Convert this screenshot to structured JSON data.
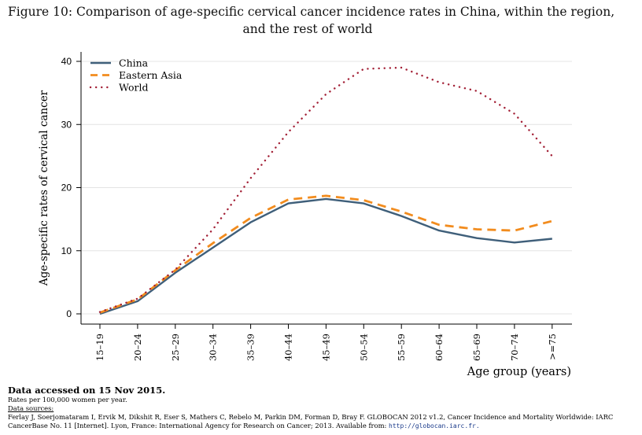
{
  "figure": {
    "title_line1": "Figure 10: Comparison of age-specific cervical cancer incidence rates in China, within the region,",
    "title_line2": "and the rest of world"
  },
  "chart_data": {
    "type": "line",
    "xlabel": "Age group (years)",
    "ylabel": "Age-specific rates of cervical cancer",
    "ylim": [
      0,
      40
    ],
    "yticks": [
      0,
      10,
      20,
      30,
      40
    ],
    "grid": true,
    "legend_position": "top-left",
    "categories": [
      "15–19",
      "20–24",
      "25–29",
      "30–34",
      "35–39",
      "40–44",
      "45–49",
      "50–54",
      "55–59",
      "60–64",
      "65–69",
      "70–74",
      ">=75"
    ],
    "series": [
      {
        "name": "China",
        "color": "#3f5f7a",
        "style": "solid",
        "values": [
          0.0,
          2.0,
          6.5,
          10.5,
          14.5,
          17.5,
          18.2,
          17.5,
          15.5,
          13.2,
          12.0,
          11.3,
          11.9
        ]
      },
      {
        "name": "Eastern Asia",
        "color": "#f28c1e",
        "style": "dashed",
        "values": [
          0.2,
          2.3,
          6.9,
          11.2,
          15.2,
          18.1,
          18.7,
          18.0,
          16.2,
          14.1,
          13.4,
          13.2,
          14.7
        ]
      },
      {
        "name": "World",
        "color": "#a32036",
        "style": "dotted",
        "values": [
          0.3,
          2.4,
          7.0,
          13.4,
          21.5,
          28.8,
          34.8,
          38.8,
          39.0,
          36.7,
          35.3,
          31.7,
          25.0
        ]
      }
    ]
  },
  "footer": {
    "accessed": "Data accessed on 15 Nov 2015.",
    "rates_note": "Rates per 100,000 women per year.",
    "sources_label": "Data sources:",
    "source_line1": "Ferlay J, Soerjomataram I, Ervik M, Dikshit R, Eser S, Mathers C, Rebelo M, Parkin DM, Forman D, Bray F. GLOBOCAN 2012 v1.2, Cancer Incidence and Mortality Worldwide: IARC",
    "source_line2_text": "CancerBase No. 11 [Internet]. Lyon, France: International Agency for Research on Cancer; 2013. Available from: ",
    "source_url": "http://globocan.iarc.fr."
  }
}
